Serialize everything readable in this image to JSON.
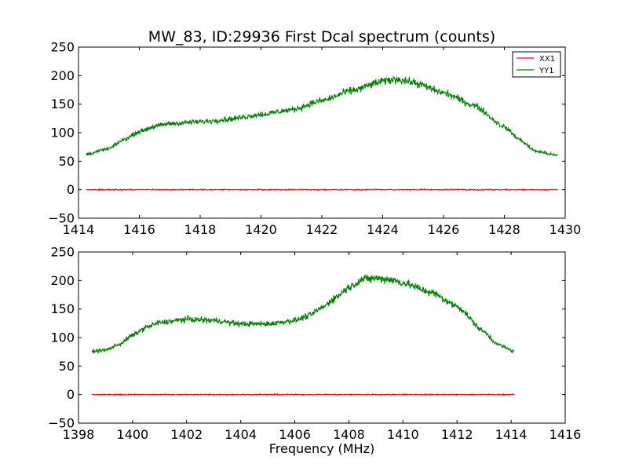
{
  "title": "MW_83, ID:29936 First Dcal spectrum (counts)",
  "chart_data": [
    {
      "type": "line",
      "xlim": [
        1414,
        1430
      ],
      "ylim": [
        -50,
        250
      ],
      "xticks": [
        1414,
        1416,
        1418,
        1420,
        1422,
        1424,
        1426,
        1428,
        1430
      ],
      "yticks": [
        -50,
        0,
        50,
        100,
        150,
        200,
        250
      ],
      "x_range": [
        1414.25,
        1429.75
      ],
      "legend": "top-right",
      "series": [
        {
          "name": "XX1",
          "color": "#ff0000",
          "points": [
            [
              1414.25,
              0
            ],
            [
              1429.75,
              0
            ]
          ]
        },
        {
          "name": "YY1",
          "color": "#008000",
          "points": [
            [
              1414.25,
              62
            ],
            [
              1415,
              72
            ],
            [
              1415.5,
              88
            ],
            [
              1416,
              102
            ],
            [
              1416.5,
              111
            ],
            [
              1417,
              116
            ],
            [
              1418,
              119
            ],
            [
              1419,
              124
            ],
            [
              1420,
              132
            ],
            [
              1421,
              140
            ],
            [
              1422,
              156
            ],
            [
              1423,
              174
            ],
            [
              1424,
              190
            ],
            [
              1424.5,
              194
            ],
            [
              1425,
              188
            ],
            [
              1426,
              170
            ],
            [
              1427,
              148
            ],
            [
              1428,
              110
            ],
            [
              1428.5,
              88
            ],
            [
              1429,
              68
            ],
            [
              1429.75,
              60
            ]
          ]
        }
      ]
    },
    {
      "type": "line",
      "xlim": [
        1398,
        1416
      ],
      "ylim": [
        -50,
        250
      ],
      "xticks": [
        1398,
        1400,
        1402,
        1404,
        1406,
        1408,
        1410,
        1412,
        1414,
        1416
      ],
      "yticks": [
        -50,
        0,
        50,
        100,
        150,
        200,
        250
      ],
      "x_range": [
        1398.5,
        1414.1
      ],
      "xlabel": "Frequency (MHz)",
      "series": [
        {
          "name": "XX1",
          "color": "#ff0000",
          "points": [
            [
              1398.5,
              0
            ],
            [
              1414.1,
              0
            ]
          ]
        },
        {
          "name": "YY1",
          "color": "#008000",
          "points": [
            [
              1398.5,
              76
            ],
            [
              1399,
              78
            ],
            [
              1399.5,
              88
            ],
            [
              1400,
              104
            ],
            [
              1400.5,
              118
            ],
            [
              1401,
              126
            ],
            [
              1402,
              132
            ],
            [
              1403,
              130
            ],
            [
              1404,
              124
            ],
            [
              1405,
              124
            ],
            [
              1406,
              130
            ],
            [
              1406.5,
              138
            ],
            [
              1407,
              152
            ],
            [
              1407.5,
              170
            ],
            [
              1408,
              188
            ],
            [
              1408.5,
              202
            ],
            [
              1409,
              204
            ],
            [
              1409.5,
              202
            ],
            [
              1410,
              196
            ],
            [
              1411,
              180
            ],
            [
              1412,
              155
            ],
            [
              1413,
              110
            ],
            [
              1413.5,
              88
            ],
            [
              1414.1,
              76
            ]
          ]
        }
      ]
    }
  ]
}
